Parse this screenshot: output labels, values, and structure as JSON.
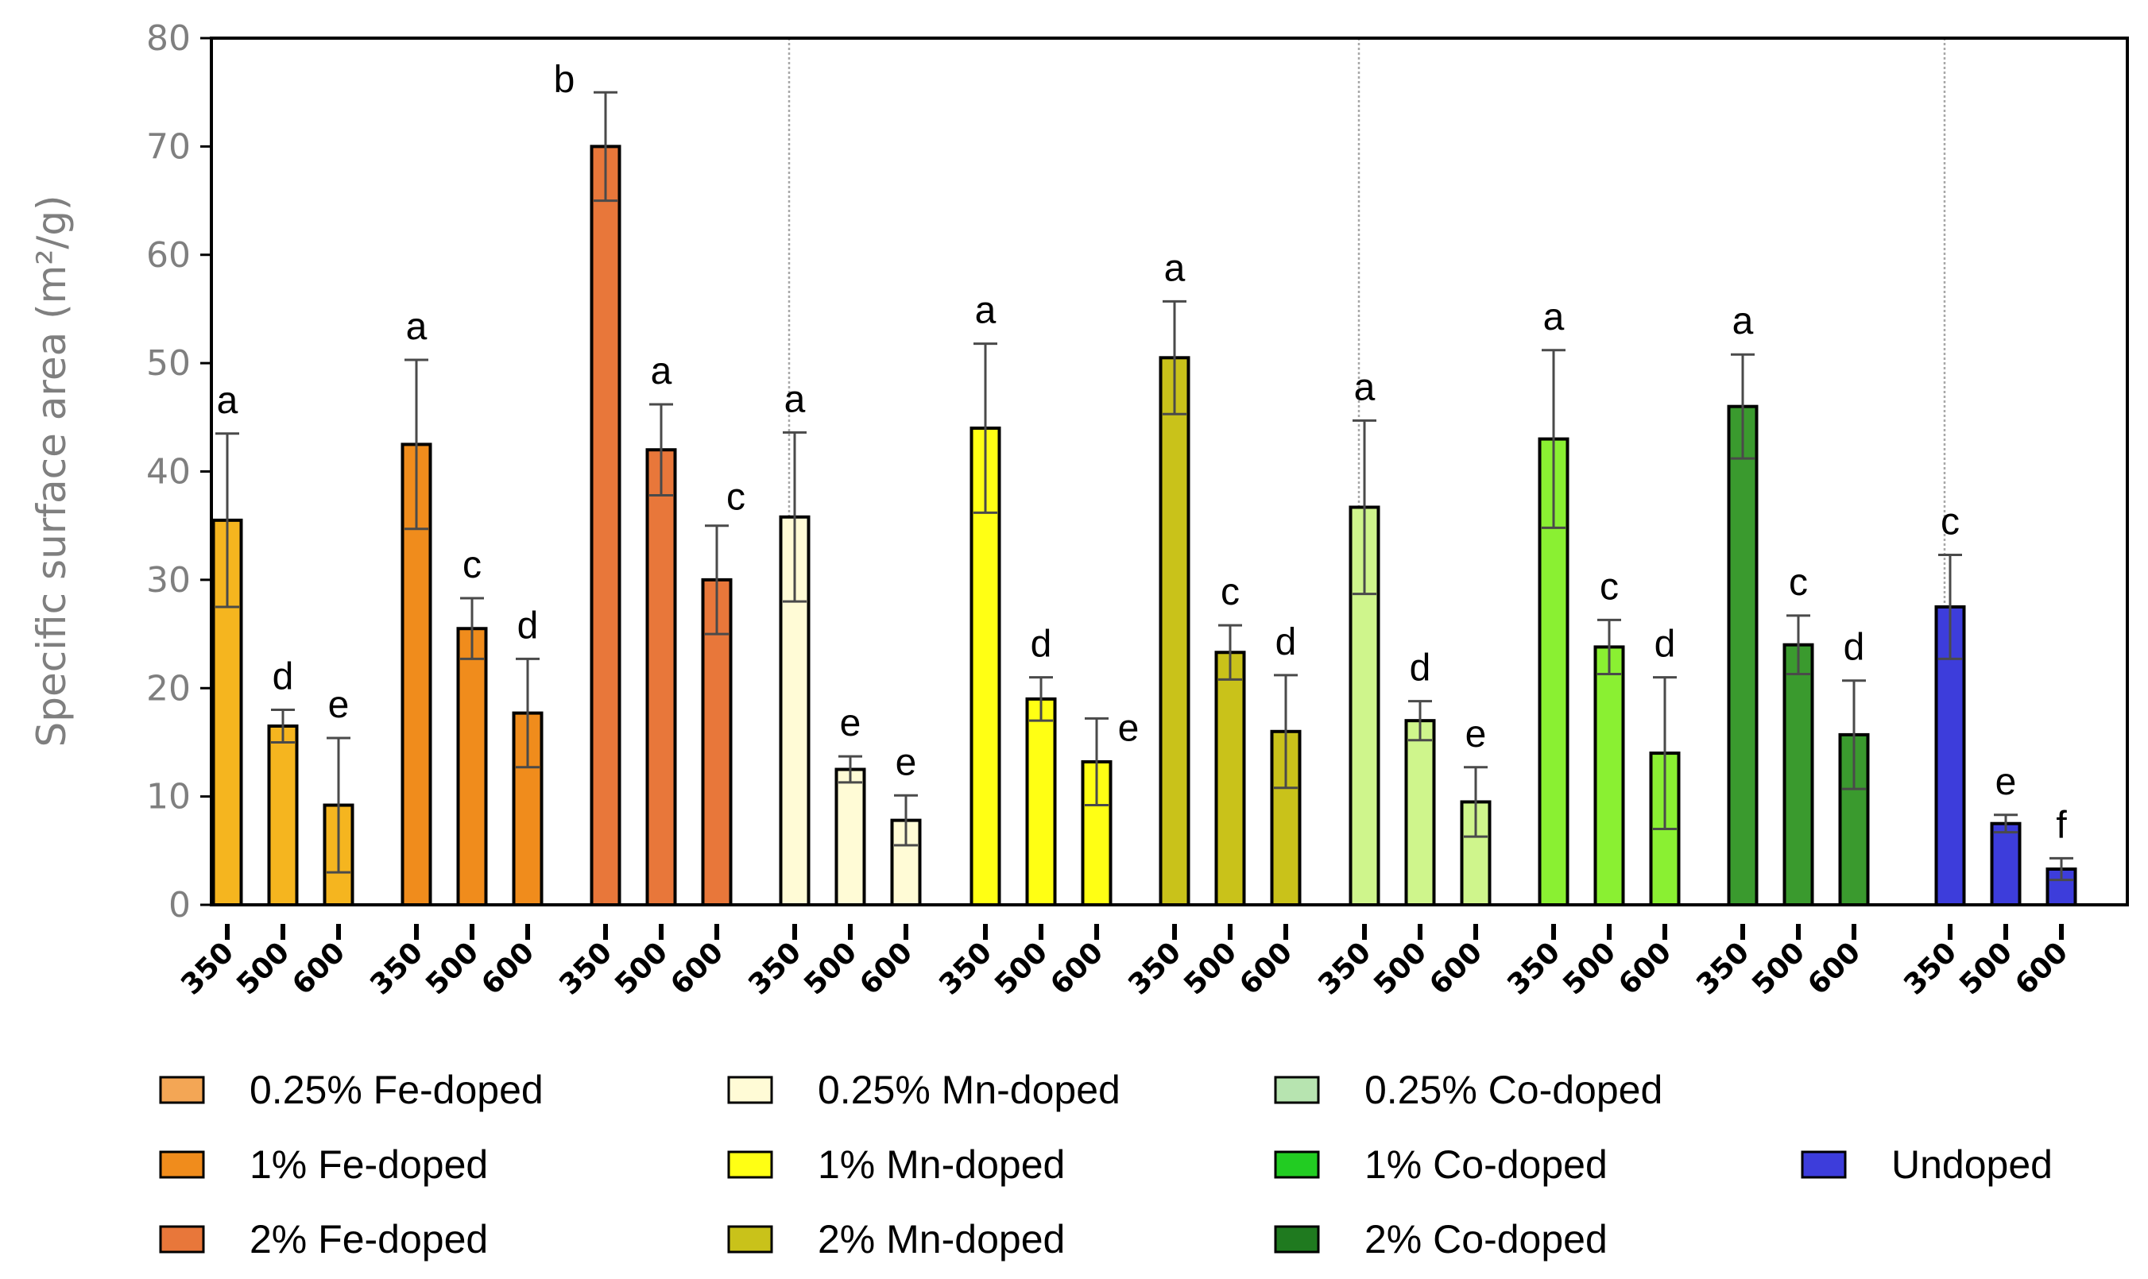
{
  "chart_data": {
    "type": "bar",
    "title": "",
    "xlabel": "",
    "ylabel": "Specific surface area (m²/g)",
    "ylim": [
      0,
      80
    ],
    "yticks": [
      "0",
      "10",
      "20",
      "30",
      "40",
      "50",
      "60",
      "70",
      "80"
    ],
    "categories": [
      "350",
      "500",
      "600"
    ],
    "groups": [
      {
        "name": "0.25% Fe-doped",
        "color": "#F5B51F",
        "values": [
          35.5,
          16.5,
          9.2
        ],
        "errors": [
          8.0,
          1.5,
          6.2
        ],
        "letters": [
          "a",
          "d",
          "e"
        ]
      },
      {
        "name": "1% Fe-doped",
        "color": "#F08C1C",
        "values": [
          42.5,
          25.5,
          17.7
        ],
        "errors": [
          7.8,
          2.8,
          5.0
        ],
        "letters": [
          "a",
          "c",
          "d"
        ]
      },
      {
        "name": "2% Fe-doped",
        "color": "#E8773A",
        "values": [
          70.0,
          42.0,
          30.0
        ],
        "errors": [
          5.0,
          4.2,
          5.0
        ],
        "letters": [
          "b",
          "a",
          "c"
        ]
      },
      {
        "name": "0.25% Mn-doped",
        "color": "#FFFBD6",
        "values": [
          35.8,
          12.5,
          7.8
        ],
        "errors": [
          7.8,
          1.2,
          2.3
        ],
        "letters": [
          "a",
          "e",
          "e"
        ]
      },
      {
        "name": "1% Mn-doped",
        "color": "#FFFF14",
        "values": [
          44.0,
          19.0,
          13.2
        ],
        "errors": [
          7.8,
          2.0,
          4.0
        ],
        "letters": [
          "a",
          "d",
          "e"
        ]
      },
      {
        "name": "2% Mn-doped",
        "color": "#C9C21A",
        "values": [
          50.5,
          23.3,
          16.0
        ],
        "errors": [
          5.2,
          2.5,
          5.2
        ],
        "letters": [
          "a",
          "c",
          "d"
        ]
      },
      {
        "name": "0.25% Co-doped",
        "color": "#CFF58C",
        "values": [
          36.7,
          17.0,
          9.5
        ],
        "errors": [
          8.0,
          1.8,
          3.2
        ],
        "letters": [
          "a",
          "d",
          "e"
        ]
      },
      {
        "name": "1% Co-doped",
        "color": "#8AF032",
        "values": [
          43.0,
          23.8,
          14.0
        ],
        "errors": [
          8.2,
          2.5,
          7.0
        ],
        "letters": [
          "a",
          "c",
          "d"
        ]
      },
      {
        "name": "2% Co-doped",
        "color": "#3A9A2E",
        "values": [
          46.0,
          24.0,
          15.7
        ],
        "errors": [
          4.8,
          2.7,
          5.0
        ],
        "letters": [
          "a",
          "c",
          "d"
        ]
      },
      {
        "name": "Undoped",
        "color": "#3D3DDB",
        "values": [
          27.5,
          7.5,
          3.3
        ],
        "errors": [
          4.8,
          0.8,
          1.0
        ],
        "letters": [
          "c",
          "e",
          "f"
        ]
      }
    ],
    "legend": [
      {
        "label": "0.25% Fe-doped",
        "color": "#F3A655"
      },
      {
        "label": "0.25% Mn-doped",
        "color": "#FFFBD6"
      },
      {
        "label": "0.25% Co-doped",
        "color": "#B7E4B0"
      },
      {
        "label": "1% Fe-doped",
        "color": "#F08C1C"
      },
      {
        "label": "1% Mn-doped",
        "color": "#FFFF14"
      },
      {
        "label": "1% Co-doped",
        "color": "#22CC22"
      },
      {
        "label": "Undoped",
        "color": "#3D3DDB"
      },
      {
        "label": "2% Fe-doped",
        "color": "#E8773A"
      },
      {
        "label": "2% Mn-doped",
        "color": "#C9C21A"
      },
      {
        "label": "2% Co-doped",
        "color": "#1F7A1F"
      }
    ],
    "grid": false,
    "legend_position": "bottom"
  }
}
